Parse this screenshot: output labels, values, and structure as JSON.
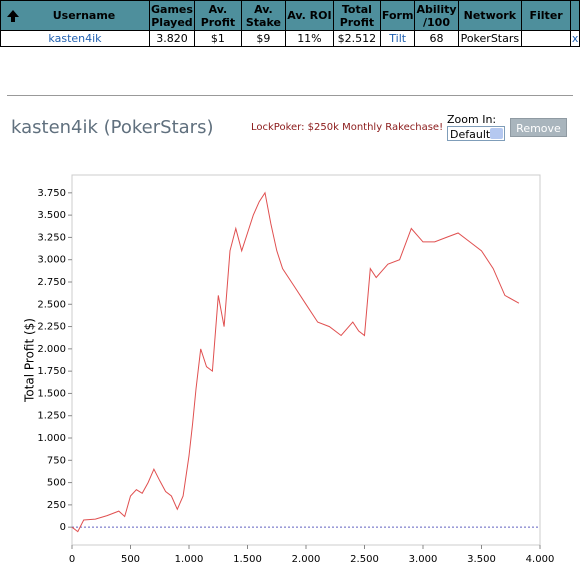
{
  "table": {
    "header": [
      "Username",
      "Games Played",
      "Av. Profit",
      "Av. Stake",
      "Av. ROI",
      "Total Profit",
      "Form",
      "Ability /100",
      "Network",
      "Filter"
    ],
    "rows": [
      [
        "kasten4ik",
        "3.820",
        "$1",
        "$9",
        "11%",
        "$2.512",
        "Tilt",
        "68",
        "PokerStars"
      ]
    ],
    "remove_mark": "x"
  },
  "player_title": "kasten4ik (PokerStars)",
  "promo_link": "LockPoker: $250k Monthly Rakechase!",
  "zoom": {
    "label": "Zoom In:",
    "selected": "Default",
    "button": "Remove"
  },
  "chart_data": {
    "type": "line",
    "y_label": "Total Profit ($)",
    "color": "#e05050",
    "x": [
      0,
      50,
      100,
      200,
      300,
      400,
      450,
      500,
      550,
      600,
      650,
      700,
      750,
      800,
      850,
      900,
      950,
      1000,
      1030,
      1060,
      1100,
      1150,
      1200,
      1250,
      1300,
      1350,
      1400,
      1450,
      1500,
      1550,
      1600,
      1650,
      1700,
      1750,
      1800,
      1900,
      2000,
      2100,
      2200,
      2300,
      2400,
      2450,
      2500,
      2550,
      2600,
      2700,
      2800,
      2900,
      3000,
      3100,
      3200,
      3300,
      3400,
      3500,
      3600,
      3700,
      3820
    ],
    "values": [
      0,
      -50,
      80,
      90,
      130,
      180,
      120,
      350,
      420,
      380,
      500,
      650,
      520,
      400,
      350,
      200,
      350,
      800,
      1150,
      1550,
      2000,
      1800,
      1750,
      2600,
      2250,
      3100,
      3350,
      3100,
      3300,
      3500,
      3650,
      3750,
      3400,
      3100,
      2900,
      2700,
      2500,
      2300,
      2250,
      2150,
      2300,
      2200,
      2150,
      2900,
      2800,
      2950,
      3000,
      3350,
      3200,
      3200,
      3250,
      3300,
      3200,
      3100,
      2900,
      2600,
      2512
    ],
    "xlim": [
      0,
      4000
    ],
    "xticks": [
      0,
      500,
      {
        "value": 1000,
        "label": "1.000"
      },
      {
        "value": 1500,
        "label": "1.500"
      },
      {
        "value": 2000,
        "label": "2.000"
      },
      {
        "value": 2500,
        "label": "2.500"
      },
      {
        "value": 3000,
        "label": "3.000"
      },
      {
        "value": 3500,
        "label": "3.500"
      },
      {
        "value": 4000,
        "label": "4.000"
      }
    ],
    "ylim": [
      -200,
      3950
    ],
    "yticks": [
      0,
      250,
      500,
      750,
      {
        "value": 1000,
        "label": "1.000"
      },
      {
        "value": 1250,
        "label": "1.250"
      },
      {
        "value": 1500,
        "label": "1.500"
      },
      {
        "value": 1750,
        "label": "1.750"
      },
      {
        "value": 2000,
        "label": "2.000"
      },
      {
        "value": 2250,
        "label": "2.250"
      },
      {
        "value": 2500,
        "label": "2.500"
      },
      {
        "value": 2750,
        "label": "2.750"
      },
      {
        "value": 3000,
        "label": "3.000"
      },
      {
        "value": 3250,
        "label": "3.250"
      },
      {
        "value": 3500,
        "label": "3.500"
      },
      {
        "value": 3750,
        "label": "3.750"
      }
    ]
  }
}
